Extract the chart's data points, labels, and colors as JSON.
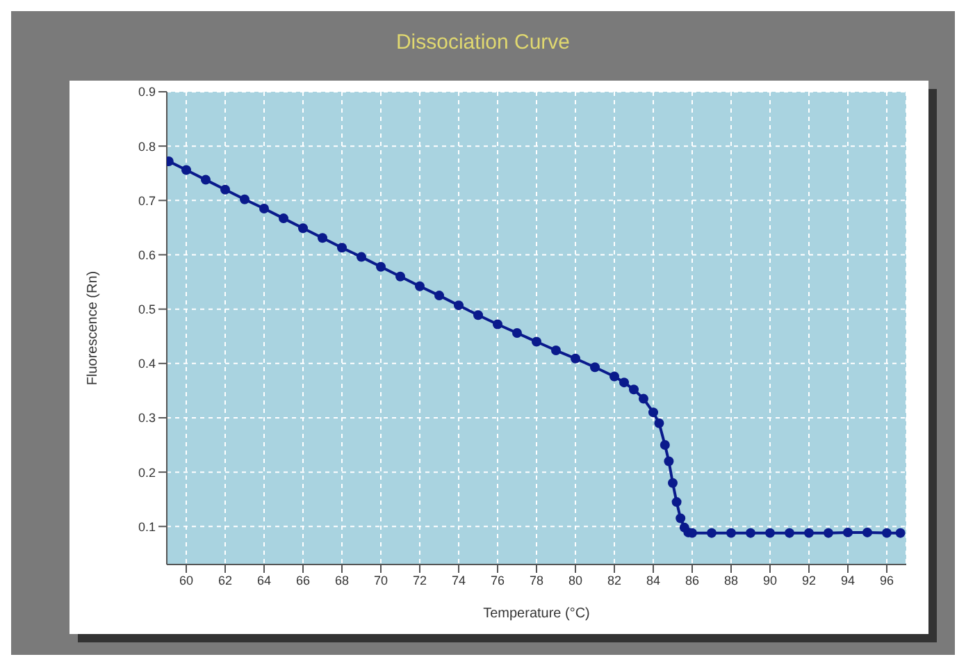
{
  "chart_data": {
    "type": "line",
    "title": "Dissociation Curve",
    "xlabel": "Temperature (°C)",
    "ylabel": "Fluorescence (Rn)",
    "xlim": [
      59,
      97
    ],
    "xticks": [
      60,
      62,
      64,
      66,
      68,
      70,
      72,
      74,
      76,
      78,
      80,
      82,
      84,
      86,
      88,
      90,
      92,
      94,
      96
    ],
    "ylim": [
      0.03,
      0.9
    ],
    "yticks": [
      0.1,
      0.2,
      0.3,
      0.4,
      0.5,
      0.6,
      0.7,
      0.8,
      0.9
    ],
    "grid": true,
    "marker": "circle",
    "x": [
      59.1,
      60,
      61,
      62,
      63,
      64,
      65,
      66,
      67,
      68,
      69,
      70,
      71,
      72,
      73,
      74,
      75,
      76,
      77,
      78,
      79,
      80,
      81,
      82,
      82.5,
      83,
      83.5,
      84,
      84.3,
      84.6,
      84.8,
      85,
      85.2,
      85.4,
      85.6,
      85.8,
      86,
      87,
      88,
      89,
      90,
      91,
      92,
      93,
      94,
      95,
      96,
      96.7
    ],
    "series": [
      {
        "color": "#0a1a8c",
        "values": [
          0.772,
          0.756,
          0.738,
          0.72,
          0.702,
          0.685,
          0.667,
          0.649,
          0.631,
          0.613,
          0.596,
          0.578,
          0.56,
          0.542,
          0.525,
          0.507,
          0.489,
          0.472,
          0.456,
          0.44,
          0.424,
          0.409,
          0.393,
          0.376,
          0.365,
          0.352,
          0.335,
          0.31,
          0.29,
          0.25,
          0.22,
          0.18,
          0.145,
          0.115,
          0.098,
          0.089,
          0.088,
          0.088,
          0.088,
          0.088,
          0.088,
          0.088,
          0.088,
          0.088,
          0.089,
          0.089,
          0.088,
          0.088
        ]
      }
    ]
  }
}
